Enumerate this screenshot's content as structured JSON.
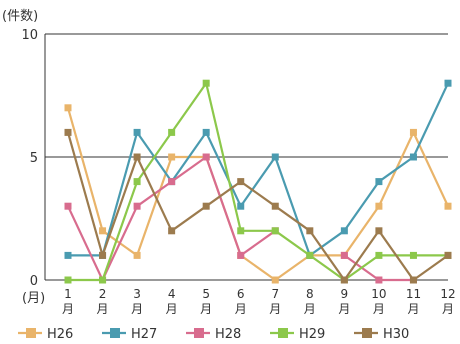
{
  "chart_data": {
    "type": "line",
    "title": "",
    "ylabel": "(件数)",
    "xlabel": "(月)",
    "ylim": [
      0,
      10
    ],
    "yticks": [
      0,
      5,
      10
    ],
    "grid": true,
    "legend_position": "bottom",
    "categories": [
      "1",
      "2",
      "3",
      "4",
      "5",
      "6",
      "7",
      "8",
      "9",
      "10",
      "11",
      "12"
    ],
    "month_suffix": "月",
    "series": [
      {
        "name": "H26",
        "color": "#E9B46A",
        "values": [
          7,
          2,
          1,
          5,
          5,
          1,
          0,
          1,
          1,
          3,
          6,
          3
        ]
      },
      {
        "name": "H27",
        "color": "#4A9BB0",
        "values": [
          1,
          1,
          6,
          4,
          6,
          3,
          5,
          1,
          2,
          4,
          5,
          8
        ]
      },
      {
        "name": "H28",
        "color": "#D86C8E",
        "values": [
          3,
          0,
          3,
          4,
          5,
          1,
          2,
          null,
          1,
          0,
          0,
          null
        ]
      },
      {
        "name": "H29",
        "color": "#8CC84B",
        "values": [
          0,
          0,
          4,
          6,
          8,
          2,
          2,
          1,
          0,
          1,
          1,
          1
        ]
      },
      {
        "name": "H30",
        "color": "#9C7B4E",
        "values": [
          6,
          1,
          5,
          2,
          3,
          4,
          3,
          2,
          0,
          2,
          0,
          1
        ]
      }
    ]
  }
}
